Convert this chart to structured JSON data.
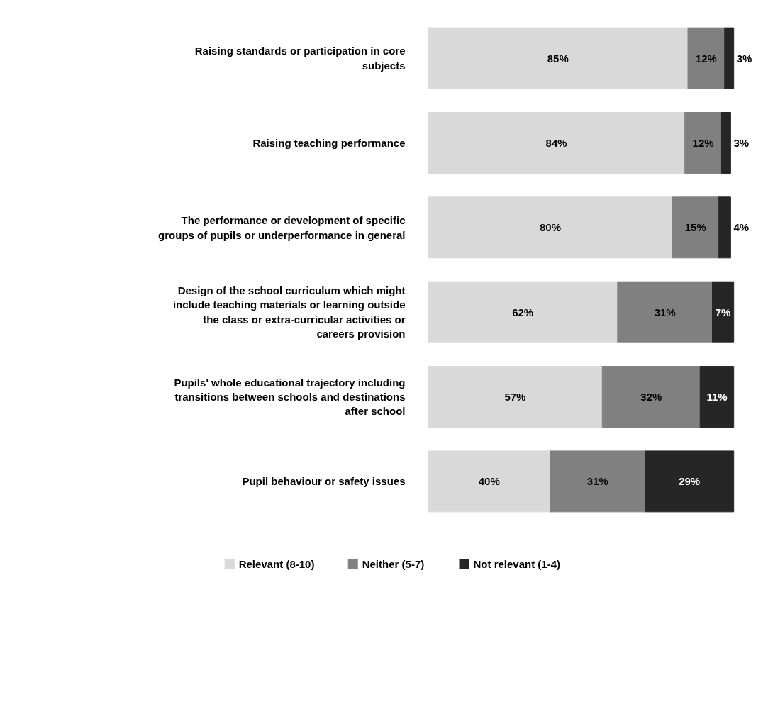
{
  "chart_data": {
    "type": "bar",
    "orientation": "horizontal",
    "stacked": true,
    "legend": "bottom",
    "grid": false,
    "categories": [
      "Raising standards or participation in core subjects",
      "Raising teaching performance",
      "The performance or development of specific groups of pupils or underperformance in general",
      "Design of the school curriculum which might include teaching materials or learning outside the class or extra-curricular activities or careers provision",
      "Pupils' whole educational trajectory including transitions between schools and destinations after school",
      "Pupil behaviour or safety issues"
    ],
    "series": [
      {
        "name": "Relevant (8-10)",
        "color": "#d9d9d9",
        "values": [
          85,
          84,
          80,
          62,
          57,
          40
        ],
        "value_labels": [
          "85%",
          "84%",
          "80%",
          "62%",
          "57%",
          "40%"
        ]
      },
      {
        "name": "Neither (5-7)",
        "color": "#808080",
        "values": [
          12,
          12,
          15,
          31,
          32,
          31
        ],
        "value_labels": [
          "12%",
          "12%",
          "15%",
          "31%",
          "32%",
          "31%"
        ]
      },
      {
        "name": "Not relevant (1-4)",
        "color": "#262626",
        "values": [
          3,
          3,
          4,
          7,
          11,
          29
        ],
        "value_labels": [
          "3%",
          "3%",
          "4%",
          "7%",
          "11%",
          "29%"
        ]
      }
    ]
  }
}
